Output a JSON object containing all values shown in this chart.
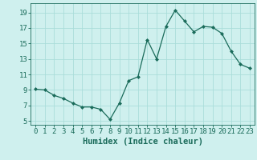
{
  "x": [
    0,
    1,
    2,
    3,
    4,
    5,
    6,
    7,
    8,
    9,
    10,
    11,
    12,
    13,
    14,
    15,
    16,
    17,
    18,
    19,
    20,
    21,
    22,
    23
  ],
  "y": [
    9.1,
    9.0,
    8.3,
    7.9,
    7.3,
    6.8,
    6.8,
    6.5,
    5.2,
    7.3,
    10.2,
    10.7,
    15.5,
    13.0,
    17.2,
    19.3,
    17.9,
    16.5,
    17.2,
    17.1,
    16.3,
    14.0,
    12.3,
    11.8
  ],
  "line_color": "#1a6b5a",
  "marker": "D",
  "marker_size": 2.0,
  "bg_color": "#cff0ee",
  "grid_color": "#aaddda",
  "xlabel": "Humidex (Indice chaleur)",
  "xlim": [
    -0.5,
    23.5
  ],
  "ylim": [
    4.5,
    20.2
  ],
  "yticks": [
    5,
    7,
    9,
    11,
    13,
    15,
    17,
    19
  ],
  "xticks": [
    0,
    1,
    2,
    3,
    4,
    5,
    6,
    7,
    8,
    9,
    10,
    11,
    12,
    13,
    14,
    15,
    16,
    17,
    18,
    19,
    20,
    21,
    22,
    23
  ],
  "tick_fontsize": 6.5,
  "xlabel_fontsize": 7.5,
  "tick_color": "#1a6b5a",
  "axis_color": "#1a6b5a",
  "linewidth": 0.9
}
